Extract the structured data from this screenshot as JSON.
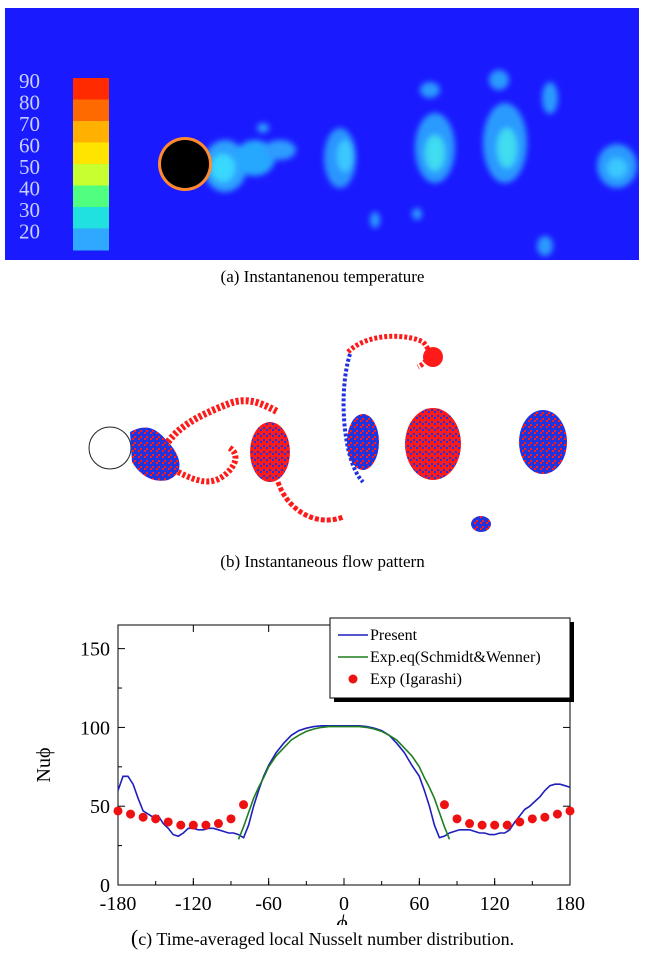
{
  "figure": {
    "panel_a": {
      "caption": "(a) Instantanenou temperature",
      "colorbar_labels": [
        "90",
        "80",
        "70",
        "60",
        "50",
        "40",
        "30",
        "20"
      ],
      "colorbar_colors": [
        "#ff2a00",
        "#ff6a00",
        "#ffb000",
        "#ffe400",
        "#c8ff30",
        "#50ff80",
        "#20e0e0",
        "#30a8ff"
      ],
      "background_color": "#1a1aff"
    },
    "panel_b": {
      "caption": "(b) Instantaneous flow pattern",
      "colors": {
        "positive": "#ff1a1a",
        "negative": "#2233dd"
      }
    },
    "panel_c": {
      "caption": "(c) Time-averaged local Nusselt number distribution.",
      "caption_paren": "(",
      "caption_rest": "c) Time-averaged local Nusselt number distribution."
    }
  },
  "chart_data": {
    "type": "line",
    "xlabel": "ϕ",
    "ylabel": "Nuϕ",
    "xlim": [
      -180,
      180
    ],
    "ylim": [
      0,
      165
    ],
    "xticks": [
      -180,
      -120,
      -60,
      0,
      60,
      120,
      180
    ],
    "yticks": [
      0,
      50,
      100,
      150
    ],
    "legend_position": "top-right",
    "series": [
      {
        "name": "Present",
        "color": "#1f1fbf",
        "style": "line",
        "x": [
          -180,
          -176,
          -172,
          -168,
          -164,
          -160,
          -156,
          -152,
          -148,
          -144,
          -140,
          -136,
          -132,
          -128,
          -124,
          -120,
          -116,
          -112,
          -108,
          -104,
          -100,
          -96,
          -92,
          -88,
          -84,
          -80,
          -76,
          -72,
          -68,
          -64,
          -60,
          -54,
          -48,
          -42,
          -36,
          -30,
          -24,
          -18,
          -12,
          -6,
          0,
          6,
          12,
          18,
          24,
          30,
          36,
          42,
          48,
          54,
          60,
          64,
          68,
          72,
          76,
          80,
          84,
          88,
          92,
          96,
          100,
          104,
          108,
          112,
          116,
          120,
          124,
          128,
          132,
          136,
          140,
          144,
          148,
          152,
          156,
          160,
          164,
          168,
          172,
          176,
          180
        ],
        "y": [
          60,
          69,
          69,
          64,
          55,
          47,
          45,
          43,
          44,
          39,
          36,
          32,
          31,
          33,
          36,
          36,
          35,
          35,
          36,
          36,
          35,
          34,
          33,
          33,
          32,
          30,
          38,
          50,
          60,
          69,
          76,
          84,
          90,
          95,
          98,
          99.5,
          100.5,
          101,
          101,
          101,
          101,
          101,
          101,
          100.5,
          99.5,
          98,
          95,
          90,
          84,
          76,
          69,
          60,
          50,
          38,
          30,
          31,
          33,
          34,
          35,
          35,
          35,
          34,
          33,
          33,
          32,
          32,
          33,
          33,
          35,
          40,
          44,
          48,
          50,
          53,
          56,
          60,
          63,
          64,
          64,
          63,
          62
        ]
      },
      {
        "name": "Exp.eq(Schmidt&Wenner)",
        "color": "#1f7f1f",
        "style": "line",
        "x": [
          -84,
          -80,
          -76,
          -72,
          -68,
          -64,
          -60,
          -54,
          -48,
          -42,
          -36,
          -30,
          -24,
          -18,
          -12,
          -6,
          0,
          6,
          12,
          18,
          24,
          30,
          36,
          42,
          48,
          54,
          60,
          64,
          68,
          72,
          76,
          80,
          84
        ],
        "y": [
          29,
          37,
          46,
          55,
          62,
          68,
          75,
          82,
          87,
          92,
          95,
          97.5,
          99,
          100,
          100.5,
          100.5,
          100.5,
          100.5,
          100.5,
          100,
          99,
          97.5,
          95,
          92,
          87,
          82,
          75,
          68,
          62,
          55,
          46,
          37,
          29
        ]
      },
      {
        "name": "Exp (Igarashi)",
        "color": "#ee1111",
        "style": "markers",
        "x": [
          -180,
          -170,
          -160,
          -150,
          -140,
          -130,
          -120,
          -110,
          -100,
          -90,
          -80,
          80,
          90,
          100,
          110,
          120,
          130,
          140,
          150,
          160,
          170,
          180
        ],
        "y": [
          47,
          45,
          43,
          42,
          40,
          38,
          38,
          38,
          39,
          42,
          51,
          51,
          42,
          39,
          38,
          38,
          38,
          40,
          42,
          43,
          45,
          47
        ]
      }
    ]
  }
}
